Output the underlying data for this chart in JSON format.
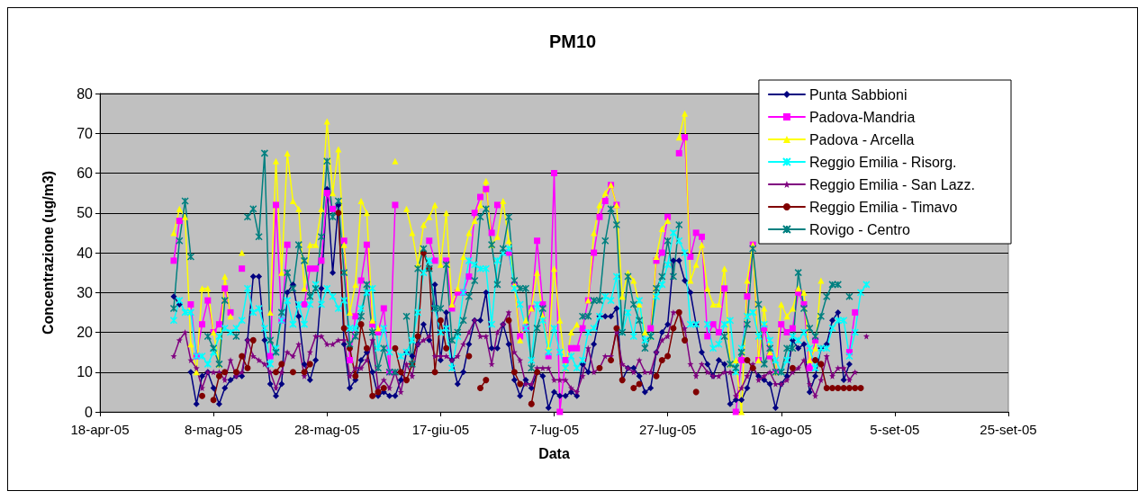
{
  "chart_data": {
    "type": "line",
    "title": "PM10",
    "xlabel": "Data",
    "ylabel": "Concentrazione (ug/m3)",
    "x": [
      "2005-05-01",
      "2005-05-02",
      "2005-05-03",
      "2005-05-04",
      "2005-05-05",
      "2005-05-06",
      "2005-05-07",
      "2005-05-08",
      "2005-05-09",
      "2005-05-10",
      "2005-05-11",
      "2005-05-12",
      "2005-05-13",
      "2005-05-14",
      "2005-05-15",
      "2005-05-16",
      "2005-05-17",
      "2005-05-18",
      "2005-05-19",
      "2005-05-20",
      "2005-05-21",
      "2005-05-22",
      "2005-05-23",
      "2005-05-24",
      "2005-05-25",
      "2005-05-26",
      "2005-05-27",
      "2005-05-28",
      "2005-05-29",
      "2005-05-30",
      "2005-05-31",
      "2005-06-01",
      "2005-06-02",
      "2005-06-03",
      "2005-06-04",
      "2005-06-05",
      "2005-06-06",
      "2005-06-07",
      "2005-06-08",
      "2005-06-09",
      "2005-06-10",
      "2005-06-11",
      "2005-06-12",
      "2005-06-13",
      "2005-06-14",
      "2005-06-15",
      "2005-06-16",
      "2005-06-17",
      "2005-06-18",
      "2005-06-19",
      "2005-06-20",
      "2005-06-21",
      "2005-06-22",
      "2005-06-23",
      "2005-06-24",
      "2005-06-25",
      "2005-06-26",
      "2005-06-27",
      "2005-06-28",
      "2005-06-29",
      "2005-06-30",
      "2005-07-01",
      "2005-07-02",
      "2005-07-03",
      "2005-07-04",
      "2005-07-05",
      "2005-07-06",
      "2005-07-07",
      "2005-07-08",
      "2005-07-09",
      "2005-07-10",
      "2005-07-11",
      "2005-07-12",
      "2005-07-13",
      "2005-07-14",
      "2005-07-15",
      "2005-07-16",
      "2005-07-17",
      "2005-07-18",
      "2005-07-19",
      "2005-07-20",
      "2005-07-21",
      "2005-07-22",
      "2005-07-23",
      "2005-07-24",
      "2005-07-25",
      "2005-07-26",
      "2005-07-27",
      "2005-07-28",
      "2005-07-29",
      "2005-07-30",
      "2005-07-31",
      "2005-08-01",
      "2005-08-02",
      "2005-08-03",
      "2005-08-04",
      "2005-08-05",
      "2005-08-06",
      "2005-08-07",
      "2005-08-08",
      "2005-08-09",
      "2005-08-10",
      "2005-08-11",
      "2005-08-12",
      "2005-08-13",
      "2005-08-14",
      "2005-08-15",
      "2005-08-16",
      "2005-08-17",
      "2005-08-18",
      "2005-08-19",
      "2005-08-20",
      "2005-08-21",
      "2005-08-22",
      "2005-08-23",
      "2005-08-24",
      "2005-08-25",
      "2005-08-26",
      "2005-08-27",
      "2005-08-28",
      "2005-08-29",
      "2005-08-30",
      "2005-08-31"
    ],
    "series": [
      {
        "name": "Punta Sabbioni",
        "color": "#000080",
        "marker": "diamond",
        "values": [
          29,
          27,
          null,
          10,
          2,
          9,
          10,
          6,
          2,
          6,
          8,
          9,
          9,
          18,
          34,
          34,
          18,
          7,
          4,
          7,
          30,
          32,
          24,
          12,
          8,
          13,
          31,
          56,
          35,
          52,
          17,
          6,
          8,
          13,
          15,
          10,
          4,
          5,
          4,
          4,
          8,
          15,
          14,
          17,
          22,
          18,
          32,
          13,
          25,
          13,
          7,
          10,
          17,
          23,
          23,
          30,
          16,
          16,
          22,
          17,
          8,
          4,
          8,
          6,
          10,
          9,
          1,
          5,
          4,
          4,
          5,
          4,
          12,
          10,
          17,
          24,
          24,
          24,
          26,
          8,
          11,
          11,
          9,
          5,
          6,
          15,
          20,
          22,
          38,
          38,
          33,
          30,
          22,
          15,
          12,
          9,
          13,
          12,
          2,
          3,
          3,
          6,
          11,
          9,
          8,
          7,
          1,
          7,
          9,
          18,
          16,
          17,
          5,
          9,
          16,
          17,
          23,
          25,
          8,
          12,
          null,
          null,
          null
        ]
      },
      {
        "name": "Padova-Mandria",
        "color": "#ff00ff",
        "marker": "square",
        "values": [
          38,
          48,
          null,
          27,
          14,
          22,
          28,
          20,
          22,
          31,
          25,
          null,
          36,
          null,
          null,
          null,
          null,
          14,
          52,
          23,
          42,
          null,
          null,
          27,
          36,
          36,
          38,
          55,
          51,
          null,
          43,
          13,
          24,
          33,
          42,
          22,
          20,
          26,
          10,
          52,
          null,
          null,
          null,
          null,
          null,
          43,
          38,
          null,
          38,
          26,
          30,
          30,
          34,
          50,
          54,
          56,
          45,
          52,
          null,
          40,
          32,
          19,
          21,
          26,
          43,
          27,
          14,
          60,
          0,
          13,
          16,
          16,
          21,
          28,
          40,
          49,
          53,
          57,
          52,
          null,
          null,
          null,
          null,
          null,
          21,
          38,
          40,
          49,
          null,
          65,
          69,
          39,
          45,
          44,
          19,
          22,
          20,
          31,
          null,
          0,
          13,
          29,
          42,
          13,
          21,
          14,
          10,
          22,
          20,
          21,
          30,
          27,
          11,
          18,
          null,
          null,
          null,
          null,
          null,
          15,
          25,
          null,
          null
        ]
      },
      {
        "name": "Padova - Arcella",
        "color": "#ffff00",
        "marker": "triangle",
        "values": [
          45,
          51,
          49,
          17,
          10,
          31,
          31,
          20,
          12,
          34,
          24,
          null,
          40,
          null,
          null,
          null,
          null,
          25,
          63,
          35,
          65,
          53,
          51,
          31,
          42,
          42,
          51,
          73,
          55,
          66,
          42,
          25,
          32,
          53,
          50,
          23,
          21,
          null,
          null,
          63,
          null,
          51,
          45,
          37,
          47,
          49,
          52,
          37,
          50,
          27,
          31,
          39,
          45,
          48,
          52,
          58,
          42,
          44,
          53,
          43,
          32,
          18,
          23,
          26,
          35,
          24,
          16,
          36,
          23,
          11,
          20,
          22,
          null,
          28,
          45,
          52,
          55,
          57,
          52,
          29,
          35,
          33,
          27,
          20,
          19,
          39,
          46,
          48,
          null,
          69,
          75,
          33,
          37,
          42,
          31,
          27,
          27,
          36,
          12,
          13,
          0,
          33,
          42,
          13,
          26,
          15,
          10,
          27,
          24,
          26,
          31,
          30,
          13,
          16,
          33,
          null,
          null,
          null,
          null,
          null,
          null,
          null,
          null
        ]
      },
      {
        "name": "Reggio Emilia - Risorg.",
        "color": "#00ffff",
        "marker": "cross",
        "values": [
          23,
          28,
          25,
          25,
          14,
          14,
          12,
          15,
          19,
          21,
          20,
          21,
          23,
          31,
          25,
          26,
          21,
          12,
          16,
          23,
          28,
          22,
          27,
          22,
          27,
          32,
          27,
          31,
          29,
          26,
          28,
          21,
          21,
          26,
          30,
          31,
          16,
          21,
          15,
          null,
          14,
          15,
          18,
          25,
          35,
          38,
          26,
          20,
          21,
          11,
          19,
          30,
          38,
          37,
          36,
          36,
          22,
          38,
          40,
          41,
          31,
          27,
          21,
          13,
          27,
          23,
          15,
          21,
          15,
          11,
          14,
          11,
          13,
          20,
          21,
          24,
          29,
          28,
          34,
          20,
          25,
          19,
          28,
          18,
          19,
          29,
          32,
          37,
          45,
          43,
          40,
          22,
          22,
          null,
          22,
          16,
          17,
          22,
          23,
          10,
          16,
          24,
          25,
          19,
          22,
          18,
          13,
          10,
          13,
          19,
          18,
          20,
          16,
          11,
          16,
          16,
          21,
          23,
          23,
          14,
          20,
          30,
          32
        ]
      },
      {
        "name": "Reggio Emilia - San Lazz.",
        "color": "#800080",
        "marker": "star",
        "values": [
          14,
          18,
          20,
          13,
          11,
          6,
          10,
          10,
          10,
          8,
          13,
          9,
          10,
          18,
          14,
          13,
          12,
          10,
          6,
          10,
          15,
          14,
          17,
          9,
          15,
          19,
          19,
          17,
          17,
          18,
          18,
          9,
          11,
          11,
          13,
          18,
          6,
          8,
          6,
          10,
          5,
          12,
          9,
          17,
          18,
          19,
          14,
          14,
          14,
          13,
          14,
          17,
          20,
          23,
          19,
          19,
          12,
          20,
          22,
          25,
          15,
          13,
          7,
          7,
          11,
          11,
          11,
          8,
          8,
          8,
          6,
          5,
          9,
          16,
          10,
          11,
          14,
          14,
          20,
          12,
          11,
          10,
          13,
          10,
          10,
          15,
          18,
          19,
          25,
          25,
          21,
          12,
          9,
          12,
          10,
          9,
          9,
          10,
          10,
          4,
          6,
          9,
          12,
          8,
          9,
          10,
          7,
          7,
          8,
          10,
          11,
          13,
          7,
          4,
          8,
          14,
          9,
          11,
          11,
          8,
          10,
          null,
          19
        ]
      },
      {
        "name": "Reggio Emilia - Timavo",
        "color": "#800000",
        "marker": "circle",
        "values": [
          null,
          null,
          null,
          null,
          null,
          4,
          null,
          3,
          9,
          10,
          null,
          10,
          14,
          11,
          18,
          null,
          null,
          null,
          10,
          12,
          null,
          10,
          null,
          10,
          12,
          null,
          null,
          null,
          null,
          50,
          21,
          16,
          9,
          22,
          16,
          4,
          5,
          6,
          null,
          16,
          10,
          8,
          12,
          19,
          40,
          36,
          10,
          23,
          16,
          null,
          null,
          null,
          14,
          null,
          6,
          8,
          null,
          null,
          null,
          23,
          10,
          7,
          null,
          2,
          10,
          null,
          null,
          null,
          null,
          null,
          null,
          null,
          null,
          null,
          null,
          11,
          null,
          13,
          21,
          8,
          null,
          6,
          7,
          null,
          null,
          9,
          13,
          14,
          21,
          25,
          18,
          null,
          5,
          null,
          null,
          null,
          null,
          null,
          null,
          null,
          null,
          13,
          11,
          null,
          null,
          null,
          null,
          null,
          null,
          11,
          null,
          null,
          null,
          13,
          12,
          6,
          6,
          6,
          6,
          6,
          6,
          6,
          null
        ]
      },
      {
        "name": "Rovigo - Centro",
        "color": "#008080",
        "marker": "cross",
        "values": [
          26,
          43,
          53,
          39,
          null,
          null,
          19,
          16,
          12,
          28,
          null,
          19,
          null,
          49,
          51,
          44,
          65,
          18,
          15,
          25,
          35,
          31,
          42,
          38,
          29,
          31,
          44,
          63,
          49,
          53,
          35,
          17,
          19,
          24,
          32,
          20,
          11,
          16,
          10,
          10,
          null,
          24,
          12,
          36,
          41,
          36,
          26,
          26,
          37,
          18,
          20,
          23,
          29,
          33,
          49,
          51,
          42,
          32,
          41,
          49,
          33,
          31,
          31,
          11,
          21,
          26,
          null,
          null,
          null,
          null,
          null,
          null,
          24,
          24,
          28,
          28,
          43,
          51,
          47,
          20,
          34,
          27,
          23,
          16,
          19,
          31,
          34,
          43,
          34,
          47,
          null,
          null,
          null,
          null,
          null,
          null,
          null,
          19,
          12,
          11,
          15,
          22,
          41,
          27,
          12,
          16,
          10,
          10,
          16,
          16,
          35,
          26,
          21,
          19,
          24,
          29,
          32,
          32,
          null,
          29,
          null,
          null,
          null
        ]
      }
    ],
    "xlim": [
      "2005-04-18",
      "2005-09-25"
    ],
    "xticks": [
      {
        "value": "2005-04-18",
        "label": "18-apr-05"
      },
      {
        "value": "2005-05-08",
        "label": "8-mag-05"
      },
      {
        "value": "2005-05-28",
        "label": "28-mag-05"
      },
      {
        "value": "2005-06-17",
        "label": "17-giu-05"
      },
      {
        "value": "2005-07-07",
        "label": "7-lug-05"
      },
      {
        "value": "2005-07-27",
        "label": "27-lug-05"
      },
      {
        "value": "2005-08-16",
        "label": "16-ago-05"
      },
      {
        "value": "2005-09-05",
        "label": "5-set-05"
      },
      {
        "value": "2005-09-25",
        "label": "25-set-05"
      }
    ],
    "ylim": [
      0,
      80
    ],
    "yticks": [
      0,
      10,
      20,
      30,
      40,
      50,
      60,
      70,
      80
    ],
    "grid": "y",
    "legend": "top right",
    "line_style": "solid"
  }
}
